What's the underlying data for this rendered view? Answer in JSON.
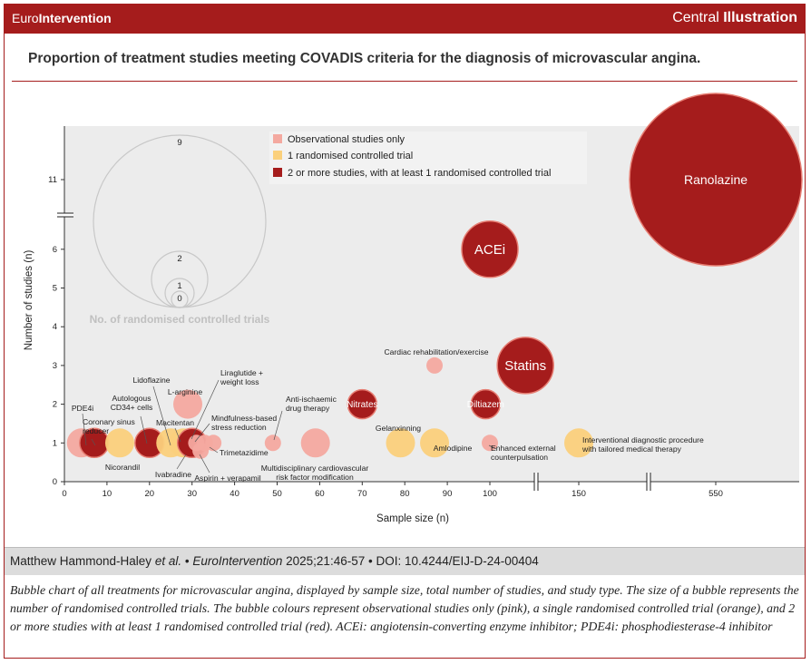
{
  "header": {
    "brand_a": "Euro",
    "brand_b": "Intervention",
    "right_a": "Central ",
    "right_b": "Illustration"
  },
  "title": "Proportion of treatment studies meeting COVADIS criteria for the diagnosis of microvascular angina.",
  "citation": {
    "authors": "Matthew Hammond-Haley ",
    "etal": "et al.",
    "sep1": " • ",
    "journal": "EuroIntervention",
    "ref": " 2025;21:46-57 • DOI: 10.4244/EIJ-D-24-00404"
  },
  "caption": "Bubble chart of all treatments for microvascular angina, displayed by sample size, total number of studies, and study type. The size of a bubble represents the number of randomised controlled trials. The bubble colours represent observational studies only (pink), a single randomised controlled trial (orange), and 2 or more studies with at least 1 randomised controlled trial (red). ACEi: angiotensin-converting enzyme inhibitor; PDE4i: phosphodiesterase-4 inhibitor",
  "colors": {
    "observational": "#f4a9a0",
    "one_rct": "#fbd07c",
    "multi": "#a51c1c",
    "brand": "#a51c1c"
  },
  "chart_data": {
    "type": "scatter",
    "xlabel": "Sample size (n)",
    "ylabel": "Number of studies (n)",
    "x_ticks": [
      "0",
      "10",
      "20",
      "30",
      "40",
      "50",
      "60",
      "70",
      "80",
      "90",
      "100",
      "150",
      "550"
    ],
    "y_ticks": [
      "0",
      "1",
      "2",
      "3",
      "4",
      "5",
      "6",
      "11"
    ],
    "size_legend": {
      "title": "No. of randomised controlled trials",
      "values": [
        "9",
        "2",
        "1",
        "0"
      ]
    },
    "legend": [
      {
        "label": "Observational studies only",
        "category": "observational"
      },
      {
        "label": "1 randomised controlled trial",
        "category": "one_rct"
      },
      {
        "label": "2 or more studies, with at least 1 randomised controlled trial",
        "category": "multi"
      }
    ],
    "points": [
      {
        "label": "PDE4i",
        "x": 4,
        "y": 1,
        "rcts": 1,
        "category": "observational"
      },
      {
        "label": "Coronary sinus reducer",
        "x": 7,
        "y": 1,
        "rcts": 1,
        "category": "multi"
      },
      {
        "label": "Nicorandil",
        "x": 13,
        "y": 1,
        "rcts": 1,
        "category": "one_rct"
      },
      {
        "label": "Autologous CD34+ cells",
        "x": 20,
        "y": 1,
        "rcts": 1,
        "category": "multi"
      },
      {
        "label": "Lidoflazine",
        "x": 25,
        "y": 1,
        "rcts": 1,
        "category": "one_rct"
      },
      {
        "label": "Macitentan",
        "x": 28,
        "y": 1,
        "rcts": 1,
        "category": "one_rct"
      },
      {
        "label": "L-arginine",
        "x": 29,
        "y": 2,
        "rcts": 1,
        "category": "observational"
      },
      {
        "label": "Liraglutide + weight loss",
        "x": 31,
        "y": 1,
        "rcts": 0,
        "category": "observational"
      },
      {
        "label": "Ivabradine",
        "x": 30,
        "y": 1,
        "rcts": 1,
        "category": "multi"
      },
      {
        "label": "Aspirin + verapamil",
        "x": 32,
        "y": 0.8,
        "rcts": 0,
        "category": "observational"
      },
      {
        "label": "Mindfulness-based stress reduction",
        "x": 35,
        "y": 1,
        "rcts": 0,
        "category": "observational"
      },
      {
        "label": "Trimetazidime",
        "x": 33,
        "y": 1,
        "rcts": 0,
        "category": "observational"
      },
      {
        "label": "Anti-ischaemic drug therapy",
        "x": 49,
        "y": 1,
        "rcts": 0,
        "category": "observational"
      },
      {
        "label": "Multidisciplinary cardiovascular risk factor modification",
        "x": 59,
        "y": 1,
        "rcts": 1,
        "category": "observational"
      },
      {
        "label": "Nitrates",
        "x": 70,
        "y": 2,
        "rcts": 1,
        "category": "multi"
      },
      {
        "label": "Gelanxinning",
        "x": 79,
        "y": 1,
        "rcts": 1,
        "category": "one_rct"
      },
      {
        "label": "Amlodipine",
        "x": 87,
        "y": 1,
        "rcts": 1,
        "category": "one_rct"
      },
      {
        "label": "Cardiac rehabilitation/exercise",
        "x": 87,
        "y": 3,
        "rcts": 0,
        "category": "observational"
      },
      {
        "label": "ACEi",
        "x": 100,
        "y": 6,
        "rcts": 2,
        "category": "multi"
      },
      {
        "label": "Diltiazem",
        "x": 99,
        "y": 2,
        "rcts": 1,
        "category": "multi"
      },
      {
        "label": "Enhanced external counterpulsation",
        "x": 100,
        "y": 1,
        "rcts": 0,
        "category": "observational"
      },
      {
        "label": "Statins",
        "x": 120,
        "y": 3,
        "rcts": 2,
        "category": "multi"
      },
      {
        "label": "Interventional diagnostic procedure with tailored medical therapy",
        "x": 150,
        "y": 1,
        "rcts": 1,
        "category": "one_rct"
      },
      {
        "label": "Ranolazine",
        "x": 550,
        "y": 11,
        "rcts": 9,
        "category": "multi"
      }
    ]
  }
}
